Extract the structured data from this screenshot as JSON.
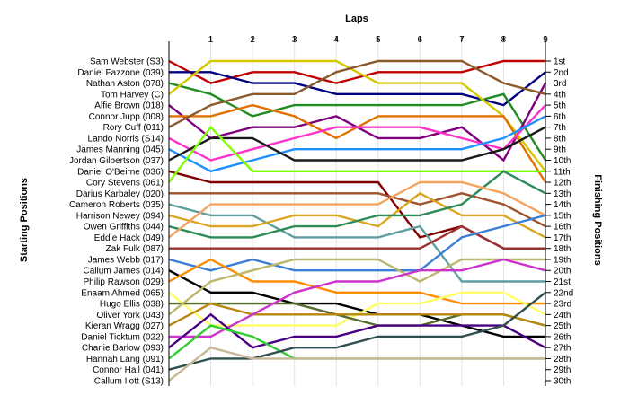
{
  "chart_data": {
    "type": "line",
    "title": "",
    "xlabel": "Laps",
    "ylabel_left": "Starting Positions",
    "ylabel_right": "Finishing Positions",
    "x": [
      0,
      1,
      2,
      3,
      4,
      5,
      6,
      7,
      8,
      9
    ],
    "x_tick_labels": [
      "1",
      "2",
      "3",
      "4",
      "5",
      "6",
      "7",
      "8",
      "9"
    ],
    "y_axis_reversed": true,
    "ylim": [
      1,
      30
    ],
    "grid": true,
    "drivers": [
      "Sam Webster (S3)",
      "Daniel Fazzone (039)",
      "Nathan Aston (078)",
      "Tom Harvey (C)",
      "Alfie Brown (018)",
      "Connor Jupp (008)",
      "Rory Cuff (011)",
      "Lando Norris (S14)",
      "James Manning (045)",
      "Jordan Gilbertson (037)",
      "Daniel O'Beirne (036)",
      "Cory Stevens (061)",
      "Darius Karbaley (020)",
      "Cameron Roberts (035)",
      "Harrison Newey (094)",
      "Owen Griffiths (044)",
      "Eddie Hack (049)",
      "Zak Fulk (087)",
      "James Webb (017)",
      "Callum James (014)",
      "Philip Rawson (029)",
      "Enaam Ahmed (065)",
      "Hugo Ellis (038)",
      "Oliver York (043)",
      "Kieran Wragg (027)",
      "Daniel Ticktum (022)",
      "Charlie Barlow (093)",
      "Hannah Lang (091)",
      "Connor Hall (041)",
      "Callum Ilott (S13)"
    ],
    "finishing_positions": [
      "1st",
      "2nd",
      "3rd",
      "4th",
      "5th",
      "6th",
      "7th",
      "8th",
      "9th",
      "10th",
      "11th",
      "12th",
      "13th",
      "14th",
      "15th",
      "16th",
      "17th",
      "18th",
      "19th",
      "20th",
      "21st",
      "22nd",
      "23rd",
      "24th",
      "25th",
      "26th",
      "27th",
      "28th",
      "29th",
      "30th"
    ],
    "series": [
      {
        "color": "#c00000",
        "values": [
          1,
          3,
          2,
          2,
          3,
          2,
          2,
          2,
          1,
          1
        ]
      },
      {
        "color": "#000080",
        "values": [
          2,
          2,
          3,
          3,
          4,
          4,
          4,
          4,
          5,
          2
        ]
      },
      {
        "color": "#228b22",
        "values": [
          3,
          4,
          6,
          5,
          5,
          5,
          5,
          5,
          4,
          10
        ]
      },
      {
        "color": "#d4c800",
        "values": [
          4,
          1,
          1,
          1,
          1,
          3,
          3,
          3,
          6,
          11
        ]
      },
      {
        "color": "#800080",
        "values": [
          5,
          8,
          7,
          7,
          6,
          8,
          8,
          7,
          10,
          3
        ]
      },
      {
        "color": "#e07000",
        "values": [
          6,
          6,
          5,
          6,
          8,
          6,
          6,
          6,
          6,
          12
        ]
      },
      {
        "color": "#8b5a2b",
        "values": [
          7,
          5,
          4,
          4,
          2,
          1,
          1,
          1,
          3,
          4
        ]
      },
      {
        "color": "#ff33cc",
        "values": [
          8,
          10,
          9,
          8,
          7,
          7,
          7,
          8,
          9,
          5
        ]
      },
      {
        "color": "#1e90ff",
        "values": [
          9,
          11,
          10,
          9,
          9,
          9,
          9,
          9,
          8,
          6
        ]
      },
      {
        "color": "#1a1a1a",
        "values": [
          10,
          8,
          8,
          10,
          10,
          10,
          10,
          10,
          9,
          7
        ]
      },
      {
        "color": "#7f0000",
        "values": [
          11,
          12,
          12,
          12,
          12,
          12,
          17,
          16,
          18,
          18
        ]
      },
      {
        "color": "#7fff00",
        "values": [
          12,
          7,
          11,
          11,
          11,
          11,
          11,
          11,
          11,
          11
        ]
      },
      {
        "color": "#a0522d",
        "values": [
          13,
          13,
          13,
          13,
          13,
          13,
          14,
          13,
          14,
          16
        ]
      },
      {
        "color": "#5f9ea0",
        "values": [
          14,
          15,
          15,
          17,
          17,
          17,
          16,
          21,
          21,
          21
        ]
      },
      {
        "color": "#daa520",
        "values": [
          15,
          16,
          16,
          15,
          15,
          16,
          13,
          15,
          15,
          17
        ]
      },
      {
        "color": "#2e8b57",
        "values": [
          16,
          17,
          17,
          16,
          16,
          15,
          15,
          14,
          11,
          13
        ]
      },
      {
        "color": "#f4a460",
        "values": [
          17,
          14,
          14,
          14,
          14,
          14,
          12,
          12,
          13,
          15
        ]
      },
      {
        "color": "#9b3030",
        "values": [
          18,
          18,
          18,
          18,
          18,
          18,
          18,
          16,
          18,
          18
        ]
      },
      {
        "color": "#3c7fd6",
        "values": [
          19,
          20,
          19,
          20,
          20,
          20,
          20,
          17,
          16,
          15
        ]
      },
      {
        "color": "#000000",
        "values": [
          20,
          22,
          22,
          23,
          23,
          24,
          24,
          25,
          26,
          26
        ]
      },
      {
        "color": "#ff8c00",
        "values": [
          21,
          19,
          21,
          21,
          22,
          22,
          22,
          23,
          23,
          23
        ]
      },
      {
        "color": "#ffff66",
        "values": [
          22,
          25,
          25,
          25,
          25,
          23,
          23,
          22,
          22,
          24
        ]
      },
      {
        "color": "#556b2f",
        "values": [
          23,
          23,
          23,
          23,
          24,
          25,
          25,
          24,
          24,
          25
        ]
      },
      {
        "color": "#bdb76b",
        "values": [
          24,
          21,
          20,
          19,
          19,
          19,
          21,
          19,
          19,
          19
        ]
      },
      {
        "color": "#b8860b",
        "values": [
          25,
          23,
          24,
          24,
          24,
          24,
          24,
          24,
          24,
          25
        ]
      },
      {
        "color": "#cc33cc",
        "values": [
          26,
          26,
          24,
          22,
          21,
          21,
          20,
          20,
          19,
          20
        ]
      },
      {
        "color": "#4b0082",
        "values": [
          27,
          24,
          27,
          26,
          26,
          25,
          25,
          25,
          25,
          27
        ]
      },
      {
        "color": "#32cd32",
        "values": [
          28,
          25,
          26,
          28,
          28,
          28,
          28,
          28,
          28,
          28
        ]
      },
      {
        "color": "#2f4f4f",
        "values": [
          29,
          28,
          28,
          27,
          27,
          26,
          26,
          26,
          25,
          22
        ]
      },
      {
        "color": "#c8b896",
        "values": [
          30,
          27,
          28,
          28,
          28,
          28,
          28,
          28,
          28,
          28
        ]
      }
    ]
  }
}
